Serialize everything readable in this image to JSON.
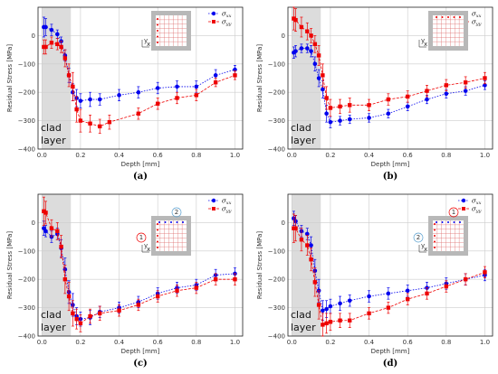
{
  "colors": {
    "xx": "#0000ee",
    "yy": "#ee0000",
    "clad_fill": "#dcdcdc",
    "grid": "#cccccc"
  },
  "shared": {
    "ylabel": "Residual Stress [MPa]",
    "xlabel": "Depth [mm]",
    "clad_text": [
      "clad",
      "layer"
    ],
    "legend": [
      "σ",
      "σ"
    ],
    "legend_sub": [
      "xx",
      "yy"
    ],
    "yticks": [
      "0",
      "−100",
      "−200",
      "−300",
      "−400"
    ],
    "xticks": [
      "0.0",
      "0.2",
      "0.4",
      "0.6",
      "0.8",
      "1.0"
    ],
    "axis_letters": [
      "y",
      "x"
    ]
  },
  "chart_data": [
    {
      "type": "scatter",
      "panel_label": "(a)",
      "xlabel": "Depth [mm]",
      "ylabel": "Residual Stress [MPa]",
      "xlim": [
        -0.02,
        1.04
      ],
      "ylim": [
        -400,
        100
      ],
      "clad_region": [
        0,
        0.15
      ],
      "inset": {
        "dots": "left",
        "markers": []
      },
      "series": [
        {
          "name": "σxx",
          "x": [
            0.01,
            0.02,
            0.05,
            0.08,
            0.1,
            0.12,
            0.14,
            0.16,
            0.18,
            0.2,
            0.25,
            0.3,
            0.4,
            0.5,
            0.6,
            0.7,
            0.8,
            0.9,
            1.0
          ],
          "y": [
            30,
            30,
            20,
            5,
            -20,
            -70,
            -140,
            -200,
            -220,
            -230,
            -225,
            -225,
            -210,
            -200,
            -185,
            -180,
            -180,
            -140,
            -120
          ],
          "err": [
            35,
            30,
            20,
            15,
            15,
            20,
            25,
            30,
            30,
            25,
            25,
            20,
            20,
            20,
            20,
            20,
            20,
            20,
            15
          ]
        },
        {
          "name": "σyy",
          "x": [
            0.01,
            0.02,
            0.05,
            0.08,
            0.1,
            0.12,
            0.14,
            0.16,
            0.18,
            0.2,
            0.25,
            0.3,
            0.35,
            0.5,
            0.6,
            0.7,
            0.8,
            0.9,
            1.0
          ],
          "y": [
            -40,
            -40,
            -25,
            -30,
            -40,
            -80,
            -140,
            -180,
            -260,
            -300,
            -310,
            -320,
            -305,
            -275,
            -240,
            -220,
            -210,
            -165,
            -140
          ],
          "err": [
            25,
            25,
            20,
            20,
            20,
            30,
            40,
            50,
            45,
            40,
            30,
            25,
            25,
            20,
            20,
            20,
            20,
            15,
            15
          ]
        }
      ]
    },
    {
      "type": "scatter",
      "panel_label": "(b)",
      "xlabel": "Depth [mm]",
      "ylabel": "Residual Stress [MPa]",
      "xlim": [
        -0.02,
        1.04
      ],
      "ylim": [
        -400,
        100
      ],
      "clad_region": [
        0,
        0.15
      ],
      "inset": {
        "dots": "top",
        "markers": []
      },
      "series": [
        {
          "name": "σxx",
          "x": [
            0.01,
            0.02,
            0.05,
            0.08,
            0.1,
            0.12,
            0.14,
            0.16,
            0.18,
            0.2,
            0.25,
            0.3,
            0.4,
            0.5,
            0.6,
            0.7,
            0.8,
            0.9,
            1.0
          ],
          "y": [
            -60,
            -55,
            -45,
            -45,
            -55,
            -100,
            -150,
            -190,
            -275,
            -305,
            -300,
            -295,
            -290,
            -275,
            -250,
            -225,
            -205,
            -195,
            -175
          ],
          "err": [
            20,
            20,
            15,
            15,
            20,
            25,
            30,
            30,
            30,
            20,
            15,
            15,
            15,
            15,
            15,
            15,
            15,
            15,
            15
          ]
        },
        {
          "name": "σyy",
          "x": [
            0.01,
            0.02,
            0.05,
            0.08,
            0.1,
            0.12,
            0.14,
            0.16,
            0.18,
            0.2,
            0.25,
            0.3,
            0.4,
            0.5,
            0.6,
            0.7,
            0.8,
            0.9,
            1.0
          ],
          "y": [
            60,
            55,
            30,
            15,
            0,
            -30,
            -70,
            -140,
            -220,
            -255,
            -250,
            -245,
            -245,
            -225,
            -215,
            -195,
            -175,
            -165,
            -150
          ],
          "err": [
            40,
            40,
            35,
            30,
            25,
            30,
            35,
            40,
            40,
            30,
            25,
            25,
            20,
            20,
            20,
            20,
            20,
            20,
            20
          ]
        }
      ]
    },
    {
      "type": "scatter",
      "panel_label": "(c)",
      "xlabel": "Depth [mm]",
      "ylabel": "Residual Stress [MPa]",
      "xlim": [
        -0.02,
        1.04
      ],
      "ylim": [
        -400,
        100
      ],
      "clad_region": [
        0,
        0.15
      ],
      "inset": {
        "dots": "both",
        "markers": [
          "2",
          "1"
        ]
      },
      "series": [
        {
          "name": "σxx",
          "x": [
            0.01,
            0.02,
            0.05,
            0.08,
            0.1,
            0.12,
            0.14,
            0.16,
            0.18,
            0.2,
            0.25,
            0.3,
            0.4,
            0.5,
            0.6,
            0.7,
            0.8,
            0.9,
            1.0
          ],
          "y": [
            -20,
            -30,
            -50,
            -40,
            -90,
            -165,
            -245,
            -290,
            -330,
            -340,
            -335,
            -315,
            -300,
            -280,
            -250,
            -230,
            -220,
            -185,
            -180
          ],
          "err": [
            25,
            20,
            20,
            20,
            30,
            40,
            40,
            40,
            30,
            25,
            25,
            20,
            20,
            20,
            20,
            20,
            20,
            20,
            20
          ]
        },
        {
          "name": "σyy",
          "x": [
            0.01,
            0.02,
            0.05,
            0.08,
            0.1,
            0.12,
            0.14,
            0.16,
            0.18,
            0.2,
            0.25,
            0.3,
            0.4,
            0.5,
            0.6,
            0.7,
            0.8,
            0.9,
            1.0
          ],
          "y": [
            40,
            35,
            -20,
            -30,
            -85,
            -200,
            -260,
            -320,
            -340,
            -355,
            -330,
            -320,
            -310,
            -290,
            -260,
            -240,
            -230,
            -200,
            -200
          ],
          "err": [
            50,
            40,
            30,
            30,
            40,
            50,
            50,
            45,
            35,
            30,
            25,
            25,
            20,
            20,
            20,
            20,
            20,
            20,
            20
          ]
        }
      ]
    },
    {
      "type": "scatter",
      "panel_label": "(d)",
      "xlabel": "Depth [mm]",
      "ylabel": "Residual Stress [MPa]",
      "xlim": [
        -0.02,
        1.04
      ],
      "ylim": [
        -400,
        100
      ],
      "clad_region": [
        0,
        0.15
      ],
      "inset": {
        "dots": "both",
        "markers": [
          "1",
          "2"
        ]
      },
      "series": [
        {
          "name": "σxx",
          "x": [
            0.01,
            0.02,
            0.05,
            0.08,
            0.1,
            0.12,
            0.14,
            0.16,
            0.18,
            0.2,
            0.25,
            0.3,
            0.4,
            0.5,
            0.6,
            0.7,
            0.8,
            0.9,
            1.0
          ],
          "y": [
            15,
            5,
            -30,
            -40,
            -80,
            -170,
            -240,
            -310,
            -305,
            -295,
            -285,
            -275,
            -260,
            -250,
            -240,
            -230,
            -215,
            -200,
            -185
          ],
          "err": [
            25,
            20,
            20,
            20,
            30,
            40,
            40,
            35,
            30,
            25,
            25,
            20,
            20,
            20,
            20,
            20,
            20,
            20,
            20
          ]
        },
        {
          "name": "σyy",
          "x": [
            0.01,
            0.02,
            0.05,
            0.08,
            0.1,
            0.12,
            0.14,
            0.16,
            0.18,
            0.2,
            0.25,
            0.3,
            0.4,
            0.5,
            0.6,
            0.7,
            0.8,
            0.9,
            1.0
          ],
          "y": [
            -20,
            -20,
            -60,
            -80,
            -130,
            -210,
            -290,
            -360,
            -355,
            -350,
            -345,
            -345,
            -320,
            -300,
            -270,
            -250,
            -225,
            -200,
            -175
          ],
          "err": [
            50,
            45,
            40,
            35,
            40,
            50,
            50,
            40,
            35,
            30,
            25,
            25,
            20,
            20,
            20,
            20,
            20,
            20,
            20
          ]
        }
      ]
    }
  ]
}
